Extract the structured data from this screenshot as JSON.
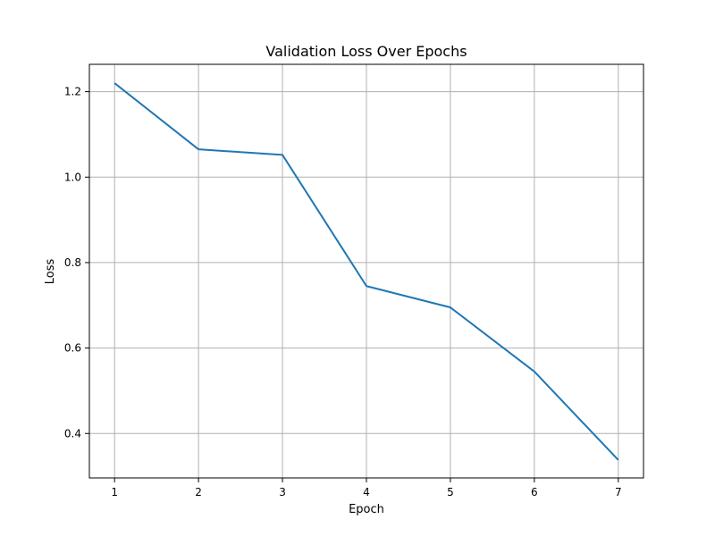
{
  "chart_data": {
    "type": "line",
    "title": "Validation Loss Over Epochs",
    "xlabel": "Epoch",
    "ylabel": "Loss",
    "x": [
      1,
      2,
      3,
      4,
      5,
      6,
      7
    ],
    "series": [
      {
        "values": [
          1.22,
          1.065,
          1.052,
          0.745,
          0.695,
          0.545,
          0.338
        ]
      }
    ],
    "xlim": [
      0.7,
      7.3
    ],
    "ylim": [
      0.296,
      1.264
    ],
    "xticks": [
      1,
      2,
      3,
      4,
      5,
      6,
      7
    ],
    "yticks": [
      0.4,
      0.6,
      0.8,
      1.0,
      1.2
    ],
    "xtick_labels": [
      "1",
      "2",
      "3",
      "4",
      "5",
      "6",
      "7"
    ],
    "ytick_labels": [
      "0.4",
      "0.6",
      "0.8",
      "1.0",
      "1.2"
    ],
    "grid": true,
    "colors": {
      "line": "#1f77b4",
      "grid": "#b0b0b0",
      "axes": "#000000"
    }
  }
}
